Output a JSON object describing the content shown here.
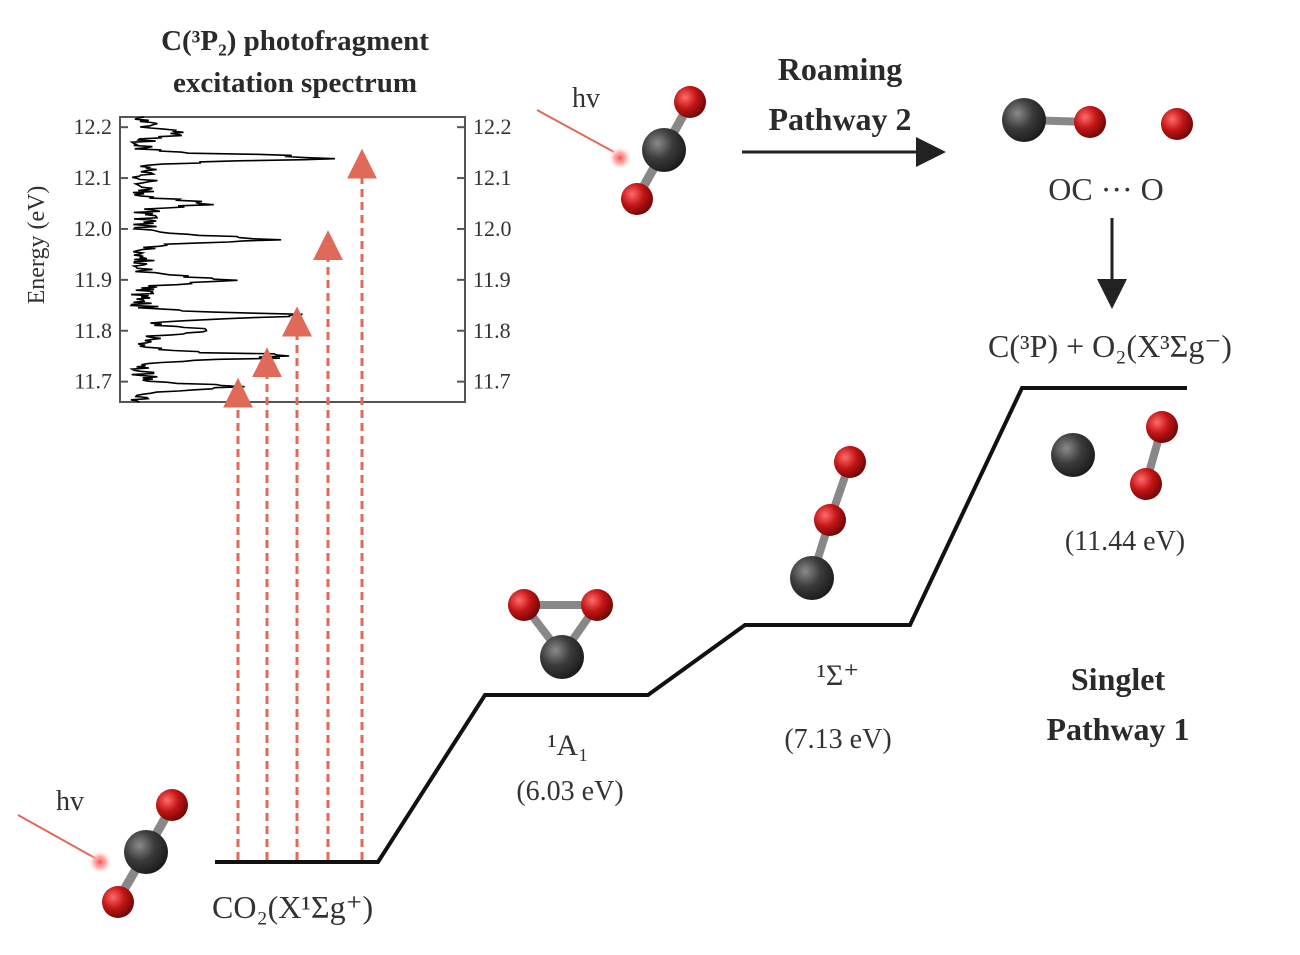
{
  "spectrum": {
    "title_line1": "C(³P₂) photofragment",
    "title_line2": "excitation spectrum",
    "ylabel": "Energy (eV)",
    "ticks": [
      "12.2",
      "12.1",
      "12.0",
      "11.9",
      "11.8",
      "11.7"
    ],
    "tick_values": [
      12.2,
      12.1,
      12.0,
      11.9,
      11.8,
      11.7
    ],
    "ylim": [
      11.66,
      12.22
    ],
    "peak_energies": [
      11.69,
      11.75,
      11.83,
      11.98,
      12.14
    ]
  },
  "roaming": {
    "hv": "hv",
    "label_line1": "Roaming",
    "label_line2": "Pathway 2",
    "intermediate": "OC ··· O"
  },
  "products": {
    "label": "C(³P) + O₂(X³Σg⁻)",
    "energy": "(11.44 eV)"
  },
  "states": [
    {
      "name": "CO₂(X¹Σg⁺)",
      "energy": ""
    },
    {
      "name": "¹A₁",
      "energy": "(6.03 eV)"
    },
    {
      "name": "¹Σ⁺",
      "energy": "(7.13 eV)"
    }
  ],
  "singlet": {
    "hv": "hv",
    "label_line1": "Singlet",
    "label_line2": "Pathway 1"
  },
  "colors": {
    "carbon": "#3b3b3b",
    "oxygen": "#c41616",
    "arrow": "#e06a5a",
    "line": "#111111"
  }
}
